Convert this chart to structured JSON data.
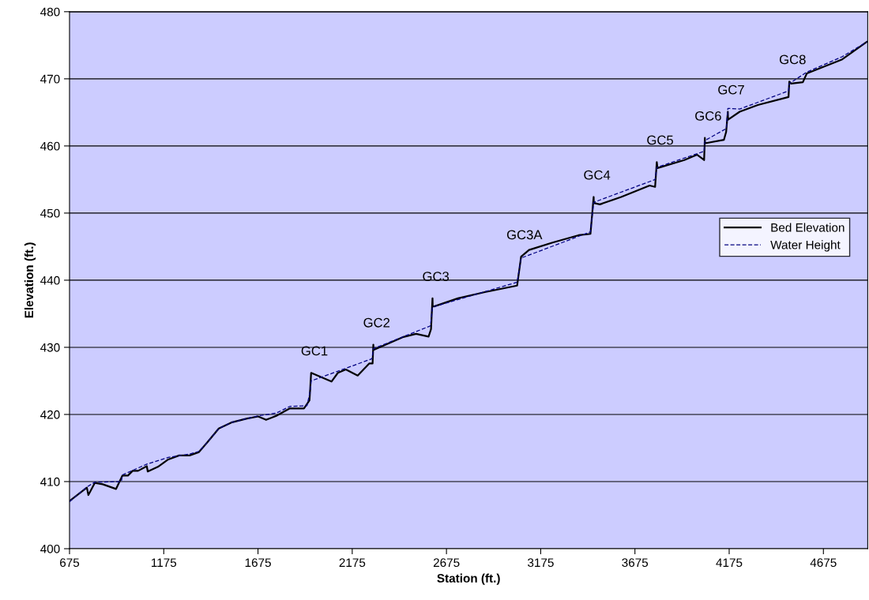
{
  "chart_data": {
    "type": "line",
    "xlabel": "Station (ft.)",
    "ylabel": "Elevation (ft.)",
    "xlim": [
      675,
      4910
    ],
    "xticks": [
      675,
      1175,
      1675,
      2175,
      2675,
      3175,
      3675,
      4175,
      4675
    ],
    "ylim": [
      400,
      480
    ],
    "yticks": [
      400,
      410,
      420,
      430,
      440,
      450,
      460,
      470,
      480
    ],
    "grid": "y",
    "legend": "right",
    "series": [
      {
        "name": "Bed Elevation",
        "color": "#000000",
        "line_style": "solid",
        "x": [
          675,
          767,
          775,
          809,
          851,
          922,
          956,
          985,
          1010,
          1039,
          1085,
          1090,
          1144,
          1199,
          1257,
          1312,
          1362,
          1408,
          1467,
          1534,
          1617,
          1676,
          1718,
          1772,
          1844,
          1919,
          1948,
          1952,
          1957,
          2065,
          2099,
          2141,
          2204,
          2266,
          2283,
          2287,
          2288,
          2442,
          2514,
          2580,
          2593,
          2601,
          2602,
          2610,
          2736,
          2874,
          3050,
          3071,
          3113,
          3238,
          3376,
          3439,
          3456,
          3457,
          3489,
          3602,
          3753,
          3782,
          3791,
          3795,
          3937,
          4004,
          4042,
          4046,
          4047,
          4147,
          4159,
          4168,
          4169,
          4231,
          4327,
          4490,
          4494,
          4503,
          4566,
          4587,
          4775,
          4905
        ],
        "values": [
          407.1,
          409.1,
          408.0,
          409.8,
          409.6,
          408.9,
          410.9,
          410.9,
          411.6,
          411.6,
          412.3,
          411.5,
          412.2,
          413.3,
          413.9,
          413.9,
          414.4,
          415.9,
          417.9,
          418.8,
          419.4,
          419.7,
          419.2,
          419.8,
          420.9,
          420.9,
          422.1,
          423.8,
          426.2,
          424.9,
          426.2,
          426.7,
          425.8,
          427.6,
          427.6,
          430.4,
          429.6,
          431.5,
          432.0,
          431.6,
          432.7,
          437.3,
          436.1,
          436.1,
          437.3,
          438.2,
          439.2,
          443.5,
          444.5,
          445.6,
          446.7,
          446.9,
          452.4,
          451.5,
          451.3,
          452.4,
          454.1,
          453.9,
          457.6,
          456.7,
          457.9,
          458.7,
          457.9,
          461.2,
          460.4,
          460.9,
          462.1,
          465.1,
          463.9,
          465.1,
          466.1,
          467.3,
          469.6,
          469.3,
          469.5,
          470.8,
          472.9,
          475.5
        ]
      },
      {
        "name": "Water Height",
        "color": "#000080",
        "line_style": "dashed",
        "x": [
          675,
          767,
          809,
          950,
          956,
          1085,
          1199,
          1312,
          1362,
          1408,
          1467,
          1534,
          1676,
          1772,
          1844,
          1935,
          1952,
          1957,
          2280,
          2287,
          2590,
          2601,
          3050,
          3071,
          3439,
          3456,
          3782,
          3791,
          4042,
          4046,
          4160,
          4168,
          4231,
          4490,
          4494,
          4587,
          4775,
          4905
        ],
        "values": [
          407.0,
          409.2,
          409.9,
          410.0,
          411.0,
          412.6,
          413.6,
          414.1,
          414.5,
          415.9,
          417.9,
          418.8,
          419.8,
          420.2,
          421.2,
          421.3,
          423.5,
          425.0,
          428.3,
          429.8,
          433.2,
          436.0,
          439.7,
          443.3,
          447.2,
          451.6,
          455.0,
          456.8,
          459.2,
          460.8,
          462.6,
          465.6,
          465.5,
          468.2,
          469.3,
          471.0,
          473.3,
          475.5
        ]
      }
    ],
    "annotations": [
      {
        "text": "GC1",
        "x": 1957,
        "y": 426.2
      },
      {
        "text": "GC2",
        "x": 2287,
        "y": 430.4
      },
      {
        "text": "GC3",
        "x": 2601,
        "y": 437.3
      },
      {
        "text": "GC3A",
        "x": 3071,
        "y": 443.5
      },
      {
        "text": "GC4",
        "x": 3456,
        "y": 452.4
      },
      {
        "text": "GC5",
        "x": 3791,
        "y": 457.6
      },
      {
        "text": "GC6",
        "x": 4046,
        "y": 461.2
      },
      {
        "text": "GC7",
        "x": 4168,
        "y": 465.1
      },
      {
        "text": "GC8",
        "x": 4494,
        "y": 469.6
      }
    ]
  }
}
